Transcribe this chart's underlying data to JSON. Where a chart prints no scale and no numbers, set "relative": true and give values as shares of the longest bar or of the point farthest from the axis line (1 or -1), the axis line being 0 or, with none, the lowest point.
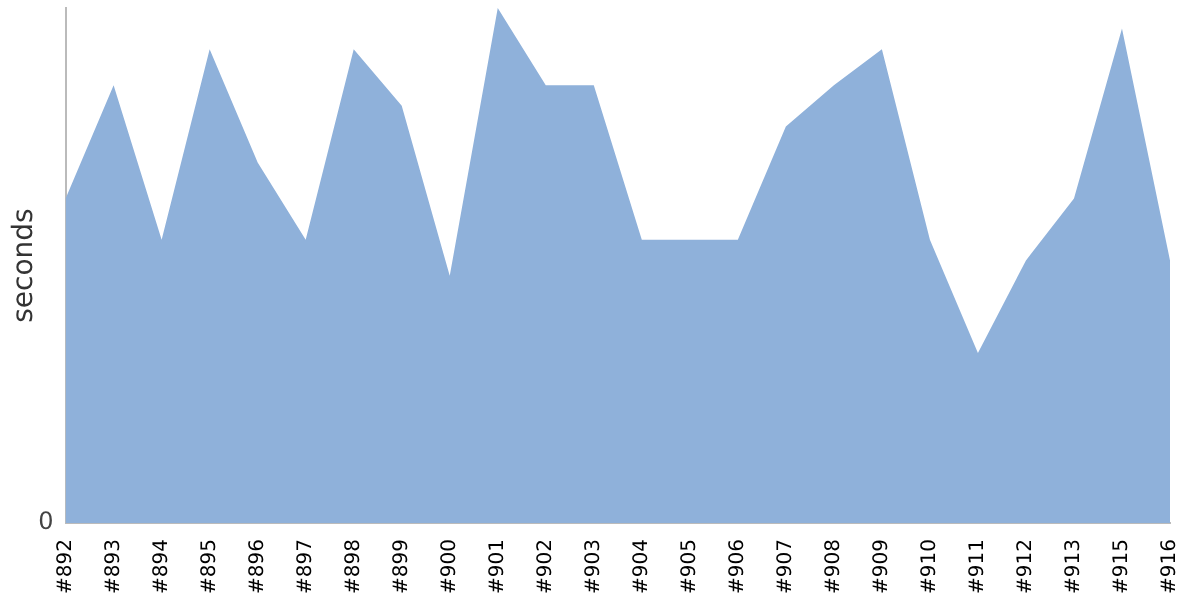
{
  "chart_data": {
    "type": "area",
    "ylabel": "seconds",
    "relative": true,
    "annotations": [
      "0"
    ],
    "categories": [
      "#892",
      "#893",
      "#894",
      "#895",
      "#896",
      "#897",
      "#898",
      "#899",
      "#900",
      "#901",
      "#902",
      "#903",
      "#904",
      "#905",
      "#906",
      "#907",
      "#908",
      "#909",
      "#910",
      "#911",
      "#912",
      "#913",
      "#915",
      "#916"
    ],
    "color": "#8fb1da",
    "values": [
      0.63,
      0.85,
      0.55,
      0.92,
      0.7,
      0.55,
      0.92,
      0.81,
      0.48,
      1,
      0.85,
      0.85,
      0.55,
      0.55,
      0.55,
      0.77,
      0.85,
      0.92,
      0.55,
      0.33,
      0.51,
      0.63,
      0.96,
      0.51
    ],
    "grid": false,
    "legend": false
  }
}
